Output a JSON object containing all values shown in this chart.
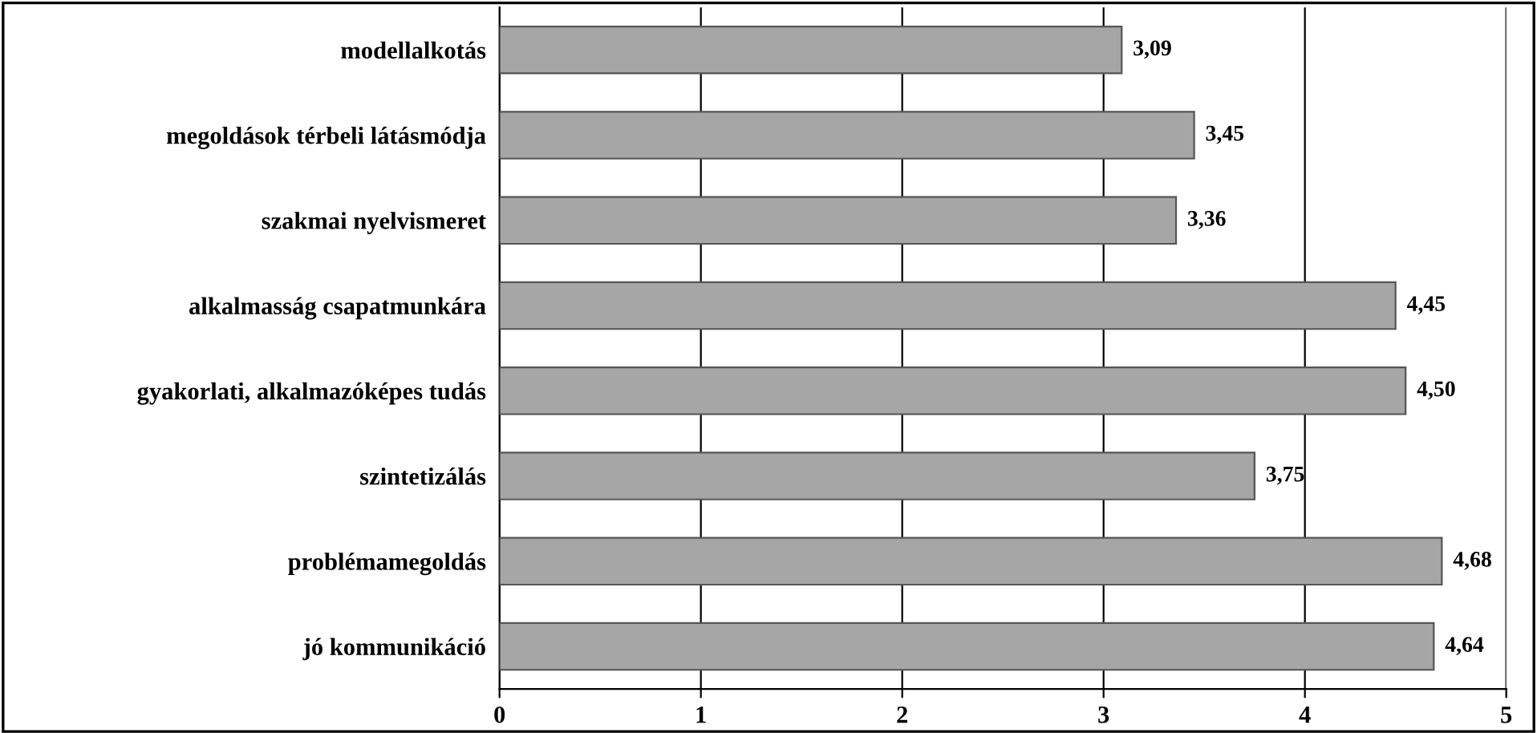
{
  "chart_data": {
    "type": "bar",
    "orientation": "horizontal",
    "categories": [
      "modellalkotás",
      "megoldások térbeli látásmódja",
      "szakmai nyelvismeret",
      "alkalmasság csapatmunkára",
      "gyakorlati, alkalmazóképes tudás",
      "szintetizálás",
      "problémamegoldás",
      "jó kommunikáció"
    ],
    "values": [
      3.09,
      3.45,
      3.36,
      4.45,
      4.5,
      3.75,
      4.68,
      4.64
    ],
    "value_labels": [
      "3,09",
      "3,45",
      "3,36",
      "4,45",
      "4,50",
      "3,75",
      "4,68",
      "4,64"
    ],
    "color": "#a6a6a6",
    "xlim": [
      0,
      5
    ],
    "xticks": [
      0,
      1,
      2,
      3,
      4,
      5
    ],
    "grid": "x",
    "legend": false
  }
}
